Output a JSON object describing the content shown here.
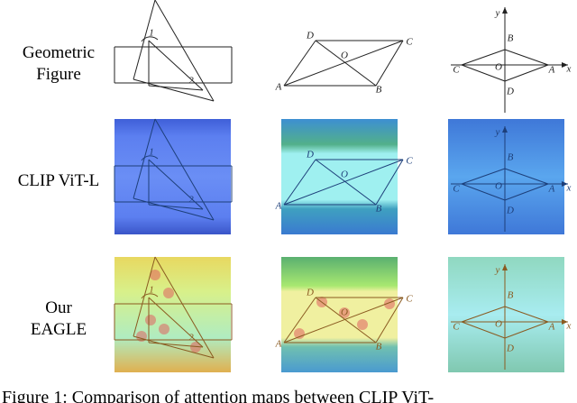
{
  "rows": [
    {
      "label_lines": [
        "Geometric",
        "Figure"
      ]
    },
    {
      "label_lines": [
        "CLIP ViT-L"
      ]
    },
    {
      "label_lines": [
        "Our",
        "EAGLE"
      ]
    }
  ],
  "figures": [
    {
      "labels": [
        "1",
        "2"
      ]
    },
    {
      "labels": [
        "D",
        "C",
        "O",
        "A",
        "B"
      ]
    },
    {
      "labels": [
        "y",
        "x",
        "B",
        "O",
        "C",
        "A",
        "D"
      ]
    }
  ],
  "caption": "Figure 1: Comparison of attention maps between CLIP ViT-"
}
